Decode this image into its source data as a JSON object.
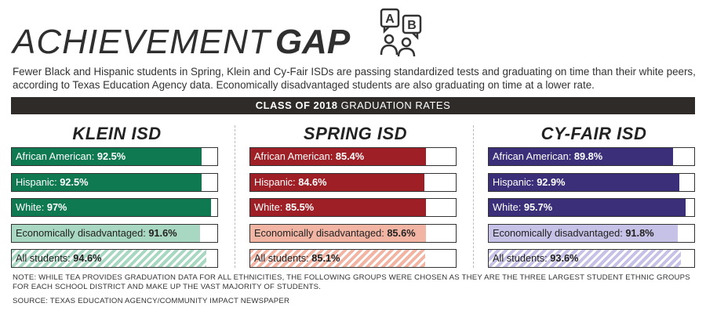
{
  "header": {
    "title_light": "ACHIEVEMENT",
    "title_bold": "GAP",
    "icon_letter_a": "A",
    "icon_letter_b": "B",
    "subtitle": "Fewer Black and Hispanic students in Spring, Klein and Cy-Fair ISDs are passing standardized tests and graduating on time than their white peers, according to Texas Education Agency data. Economically disadvantaged students are also graduating on time at a lower rate."
  },
  "band": {
    "bold": "CLASS OF 2018",
    "rest": " GRADUATION RATES"
  },
  "colors": {
    "klein": "#0f7a52",
    "klein_light": "#a9d8c2",
    "spring": "#9e1f25",
    "spring_light": "#f2b5a4",
    "cyfair": "#3b2f7a",
    "cyfair_light": "#c6c1e6"
  },
  "chart_data": {
    "type": "bar",
    "title": "CLASS OF 2018 GRADUATION RATES",
    "xlim": [
      0,
      100
    ],
    "districts": [
      {
        "name": "KLEIN ISD",
        "key": "klein",
        "bars": [
          {
            "label": "African American:",
            "value": 92.5,
            "text": "92.5%",
            "style": "solid"
          },
          {
            "label": "Hispanic:",
            "value": 92.5,
            "text": "92.5%",
            "style": "solid"
          },
          {
            "label": "White:",
            "value": 97,
            "text": "97%",
            "style": "solid"
          },
          {
            "label": "Economically disadvantaged:",
            "value": 91.6,
            "text": "91.6%",
            "style": "light"
          },
          {
            "label": "All students:",
            "value": 94.6,
            "text": "94.6%",
            "style": "hatch"
          }
        ]
      },
      {
        "name": "SPRING ISD",
        "key": "spring",
        "bars": [
          {
            "label": "African American:",
            "value": 85.4,
            "text": "85.4%",
            "style": "solid"
          },
          {
            "label": "Hispanic:",
            "value": 84.6,
            "text": "84.6%",
            "style": "solid"
          },
          {
            "label": "White:",
            "value": 85.5,
            "text": "85.5%",
            "style": "solid"
          },
          {
            "label": "Economically disadvantaged:",
            "value": 85.6,
            "text": "85.6%",
            "style": "light"
          },
          {
            "label": "All students:",
            "value": 85.1,
            "text": "85.1%",
            "style": "hatch"
          }
        ]
      },
      {
        "name": "CY-FAIR ISD",
        "key": "cyfair",
        "bars": [
          {
            "label": "African American:",
            "value": 89.8,
            "text": "89.8%",
            "style": "solid"
          },
          {
            "label": "Hispanic:",
            "value": 92.9,
            "text": "92.9%",
            "style": "solid"
          },
          {
            "label": "White:",
            "value": 95.7,
            "text": "95.7%",
            "style": "solid"
          },
          {
            "label": "Economically disadvantaged:",
            "value": 91.8,
            "text": "91.8%",
            "style": "light"
          },
          {
            "label": "All students:",
            "value": 93.6,
            "text": "93.6%",
            "style": "hatch"
          }
        ]
      }
    ]
  },
  "note": "NOTE: WHILE TEA PROVIDES GRADUATION DATA FOR ALL ETHNICITIES, THE FOLLOWING GROUPS WERE CHOSEN AS THEY ARE THE THREE LARGEST STUDENT ETHNIC GROUPS FOR EACH SCHOOL DISTRICT AND MAKE UP THE VAST MAJORITY OF STUDENTS.",
  "source": "SOURCE: TEXAS EDUCATION AGENCY/COMMUNITY IMPACT NEWSPAPER"
}
